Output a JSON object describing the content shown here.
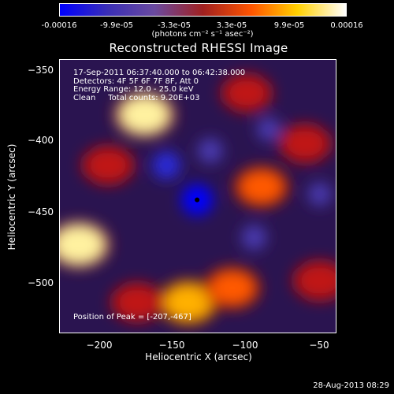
{
  "colorbar": {
    "ticks": [
      "-0.00016",
      "-9.9e-05",
      "-3.3e-05",
      "3.3e-05",
      "9.9e-05",
      "0.00016"
    ],
    "unit": "(photons cm⁻² s⁻¹ asec⁻²)",
    "min": -0.00016,
    "max": 0.00016,
    "colors": [
      "#0000ff",
      "#3b2fb5",
      "#6a4aa0",
      "#a02020",
      "#ff5500",
      "#ffd000",
      "#ffffff"
    ]
  },
  "title": "Reconstructed RHESSI Image",
  "annotation": {
    "time": "17-Sep-2011 06:37:40.000 to 06:42:38.000",
    "detectors": "Detectors: 4F 5F 6F 7F 8F, Att 0",
    "energy": "Energy Range: 12.0 - 25.0 keV",
    "method": "Clean     Total counts: 9.20E+03",
    "peak": "Position of Peak = [-207,-467]"
  },
  "chart_data": {
    "type": "heatmap",
    "title": "Reconstructed RHESSI Image",
    "xlabel": "Heliocentric X (arcsec)",
    "ylabel": "Heliocentric Y (arcsec)",
    "xlim": [
      -228,
      -38
    ],
    "ylim": [
      -537,
      -347
    ],
    "xticks": [
      -200,
      -150,
      -100,
      -50
    ],
    "xtick_labels": [
      "−200",
      "−150",
      "−100",
      "−50"
    ],
    "yticks": [
      -350,
      -400,
      -450,
      -500
    ],
    "ytick_labels": [
      "−350",
      "−400",
      "−450",
      "−500"
    ],
    "value_range": [
      -0.00016,
      0.00016
    ],
    "colormap": "blue-purple-red-yellow-white",
    "peak_position": [
      -207,
      -467
    ],
    "center_marker": [
      -134,
      -444
    ],
    "hot_regions": [
      {
        "x": -170,
        "y": -385,
        "level": 0.95
      },
      {
        "x": -215,
        "y": -475,
        "level": 1.0
      },
      {
        "x": -140,
        "y": -515,
        "level": 0.9
      },
      {
        "x": -90,
        "y": -435,
        "level": 0.7
      },
      {
        "x": -110,
        "y": -505,
        "level": 0.75
      },
      {
        "x": -60,
        "y": -405,
        "level": 0.6
      },
      {
        "x": -195,
        "y": -420,
        "level": 0.6
      },
      {
        "x": -175,
        "y": -515,
        "level": 0.6
      },
      {
        "x": -50,
        "y": -500,
        "level": 0.65
      },
      {
        "x": -100,
        "y": -370,
        "level": 0.55
      }
    ],
    "cold_regions": [
      {
        "x": -134,
        "y": -444,
        "level": -1.0
      },
      {
        "x": -155,
        "y": -420,
        "level": -0.8
      },
      {
        "x": -95,
        "y": -470,
        "level": -0.6
      },
      {
        "x": -50,
        "y": -440,
        "level": -0.5
      },
      {
        "x": -125,
        "y": -410,
        "level": -0.6
      },
      {
        "x": -85,
        "y": -395,
        "level": -0.5
      }
    ]
  },
  "footer": "28-Aug-2013 08:29"
}
